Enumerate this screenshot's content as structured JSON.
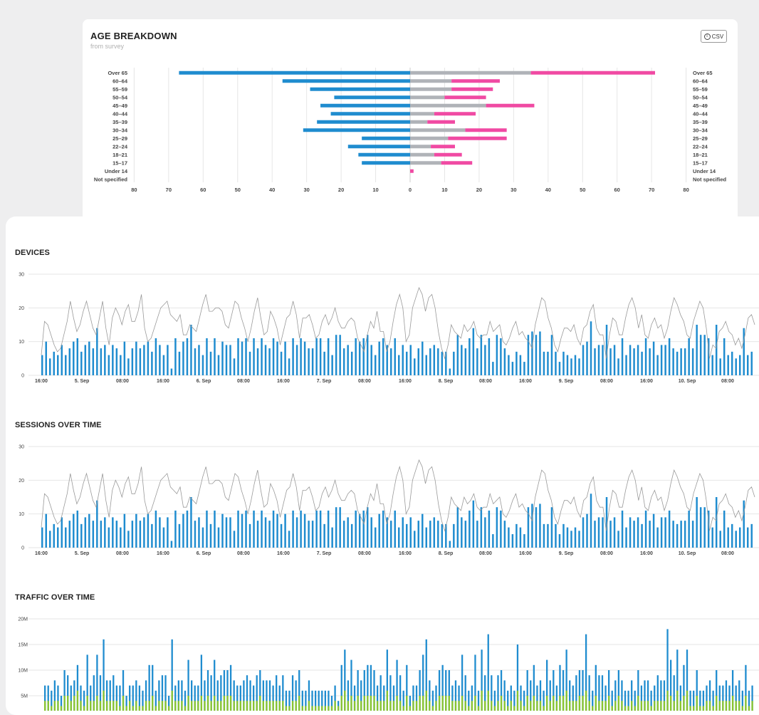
{
  "colors": {
    "blue": "#1f8ccf",
    "gray": "#b0b3b8",
    "pink": "#f04aa3",
    "green": "#8bc52e",
    "line": "#9a9a9a",
    "grid": "#e6e6e6"
  },
  "age_card": {
    "title": "AGE BREAKDOWN",
    "subtitle": "from survey",
    "csv_label": "CSV",
    "csv_icon": "download-circle-icon"
  },
  "sections": {
    "devices": "DEVICES",
    "sessions": "SESSIONS OVER TIME",
    "traffic": "TRAFFIC OVER TIME"
  },
  "chart_data": [
    {
      "id": "age",
      "type": "bar",
      "orientation": "horizontal-diverging",
      "title": "AGE BREAKDOWN",
      "subtitle": "from survey",
      "categories": [
        "Over 65",
        "60–64",
        "55–59",
        "50–54",
        "45–49",
        "40–44",
        "35–39",
        "30–34",
        "25–29",
        "22–24",
        "18–21",
        "15–17",
        "Under 14",
        "Not specified"
      ],
      "series": [
        {
          "side": "left",
          "color": "blue",
          "values": [
            67,
            37,
            29,
            22,
            26,
            23,
            27,
            31,
            14,
            18,
            15,
            14,
            0,
            0
          ]
        },
        {
          "side": "right",
          "stack": 1,
          "color": "gray",
          "values": [
            35,
            12,
            12,
            10,
            22,
            7,
            5,
            16,
            11,
            6,
            7,
            9,
            0,
            0
          ]
        },
        {
          "side": "right",
          "stack": 2,
          "color": "pink",
          "values": [
            36,
            14,
            12,
            12,
            14,
            12,
            8,
            12,
            17,
            7,
            8,
            9,
            1,
            0
          ]
        }
      ],
      "xlim": [
        -80,
        80
      ],
      "xticks": [
        "80",
        "70",
        "60",
        "50",
        "40",
        "30",
        "20",
        "10",
        "0",
        "10",
        "20",
        "30",
        "40",
        "50",
        "60",
        "70",
        "80"
      ]
    },
    {
      "id": "devices",
      "type": "bar",
      "title": "DEVICES",
      "ylim": [
        0,
        30
      ],
      "yticks": [
        "0",
        "10",
        "20",
        "30"
      ],
      "xticks": [
        "16:00",
        "5. Sep",
        "08:00",
        "16:00",
        "6. Sep",
        "08:00",
        "16:00",
        "7. Sep",
        "08:00",
        "16:00",
        "8. Sep",
        "08:00",
        "16:00",
        "9. Sep",
        "08:00",
        "16:00",
        "10. Sep",
        "08:00"
      ],
      "bars": [
        6,
        10,
        5,
        7,
        6,
        9,
        6,
        8,
        10,
        11,
        7,
        9,
        10,
        8,
        14,
        8,
        9,
        6,
        9,
        8,
        6,
        10,
        5,
        8,
        10,
        8,
        9,
        10,
        7,
        11,
        9,
        6,
        9,
        2,
        11,
        7,
        10,
        11,
        15,
        8,
        9,
        6,
        11,
        7,
        11,
        6,
        10,
        9,
        9,
        5,
        11,
        10,
        11,
        7,
        11,
        8,
        11,
        9,
        8,
        11,
        10,
        7,
        10,
        5,
        11,
        9,
        11,
        10,
        8,
        8,
        11,
        11,
        7,
        11,
        6,
        12,
        12,
        8,
        9,
        7,
        11,
        10,
        11,
        12,
        9,
        6,
        10,
        11,
        9,
        8,
        11,
        6,
        9,
        7,
        9,
        5,
        8,
        10,
        6,
        8,
        9,
        8,
        7,
        7,
        2,
        7,
        12,
        9,
        8,
        11,
        14,
        8,
        12,
        9,
        11,
        4,
        12,
        11,
        8,
        6,
        4,
        7,
        6,
        4,
        12,
        13,
        12,
        13,
        7,
        7,
        12,
        7,
        4,
        7,
        6,
        5,
        6,
        5,
        9,
        10,
        16,
        8,
        9,
        9,
        15,
        8,
        9,
        5,
        11,
        6,
        9,
        8,
        9,
        7,
        11,
        8,
        10,
        6,
        9,
        9,
        11,
        8,
        7,
        8,
        8,
        11,
        8,
        15,
        12,
        12,
        11,
        6,
        15,
        5,
        11,
        6,
        7,
        5,
        6,
        14,
        6,
        7
      ],
      "line": [
        6,
        16,
        15,
        12,
        9,
        7,
        8,
        12,
        16,
        22,
        17,
        13,
        15,
        19,
        22,
        18,
        14,
        12,
        17,
        22,
        14,
        9,
        17,
        20,
        18,
        15,
        19,
        21,
        16,
        16,
        19,
        24,
        14,
        10,
        11,
        14,
        17,
        20,
        21,
        22,
        18,
        17,
        16,
        18,
        12,
        12,
        15,
        14,
        13,
        17,
        21,
        24,
        19,
        19,
        20,
        20,
        19,
        15,
        14,
        18,
        22,
        21,
        17,
        14,
        10,
        14,
        19,
        23,
        17,
        12,
        13,
        19,
        17,
        14,
        9,
        13,
        17,
        18,
        22,
        18,
        11,
        17,
        17,
        18,
        15,
        11,
        12,
        16,
        18,
        15,
        17,
        20,
        16,
        14,
        14,
        16,
        17,
        16,
        11,
        9,
        7,
        12,
        16,
        14,
        19,
        13,
        13,
        7,
        10,
        16,
        21,
        24,
        20,
        10,
        12,
        20,
        23,
        26,
        24,
        19,
        23,
        24,
        20,
        13,
        8,
        5,
        9,
        15,
        13,
        12,
        11,
        15,
        13,
        14,
        16,
        12,
        11,
        12,
        12,
        16,
        13,
        14,
        15,
        10,
        9,
        11,
        14,
        16,
        12,
        13,
        11,
        10,
        8,
        15,
        19,
        23,
        22,
        17,
        14,
        9,
        7,
        11,
        14,
        14,
        13,
        15,
        11,
        9,
        14,
        15,
        19,
        21,
        14,
        12,
        12,
        5,
        12,
        17,
        16,
        12,
        12,
        17,
        21,
        23,
        20,
        14,
        18,
        12,
        11,
        15,
        17,
        14,
        15,
        11,
        14,
        19,
        23,
        21,
        18,
        16,
        12,
        11,
        16,
        19,
        22,
        20,
        14,
        5,
        9,
        8,
        13,
        14,
        16,
        13,
        12,
        9,
        11,
        8,
        12,
        17,
        18,
        15
      ]
    },
    {
      "id": "sessions",
      "type": "bar",
      "title": "SESSIONS OVER TIME",
      "ylim": [
        0,
        30
      ],
      "yticks": [
        "0",
        "10",
        "20",
        "30"
      ],
      "xticks": [
        "16:00",
        "5. Sep",
        "08:00",
        "16:00",
        "6. Sep",
        "08:00",
        "16:00",
        "7. Sep",
        "08:00",
        "16:00",
        "8. Sep",
        "08:00",
        "16:00",
        "9. Sep",
        "08:00",
        "16:00",
        "10. Sep",
        "08:00"
      ],
      "bars": [
        6,
        10,
        5,
        7,
        6,
        9,
        6,
        8,
        10,
        11,
        7,
        9,
        10,
        8,
        14,
        8,
        9,
        6,
        9,
        8,
        6,
        10,
        5,
        8,
        10,
        8,
        9,
        10,
        7,
        11,
        9,
        6,
        9,
        2,
        11,
        7,
        10,
        11,
        15,
        8,
        9,
        6,
        11,
        7,
        11,
        6,
        10,
        9,
        9,
        5,
        11,
        10,
        11,
        7,
        11,
        8,
        11,
        9,
        8,
        11,
        10,
        7,
        10,
        5,
        11,
        9,
        11,
        10,
        8,
        8,
        11,
        11,
        7,
        11,
        6,
        12,
        12,
        8,
        9,
        7,
        11,
        10,
        11,
        12,
        9,
        6,
        10,
        11,
        9,
        8,
        11,
        6,
        9,
        7,
        9,
        5,
        8,
        10,
        6,
        8,
        9,
        8,
        7,
        7,
        2,
        7,
        12,
        9,
        8,
        11,
        14,
        8,
        12,
        9,
        11,
        4,
        12,
        11,
        8,
        6,
        4,
        7,
        6,
        4,
        12,
        13,
        12,
        13,
        7,
        7,
        12,
        7,
        4,
        7,
        6,
        5,
        6,
        5,
        9,
        10,
        16,
        8,
        9,
        9,
        15,
        8,
        9,
        5,
        11,
        6,
        9,
        8,
        9,
        7,
        11,
        8,
        10,
        6,
        9,
        9,
        11,
        8,
        7,
        8,
        8,
        11,
        8,
        15,
        12,
        12,
        11,
        6,
        15,
        5,
        11,
        6,
        7,
        5,
        6,
        14,
        6,
        7
      ],
      "line": [
        6,
        16,
        15,
        12,
        9,
        7,
        8,
        12,
        16,
        22,
        17,
        13,
        15,
        19,
        22,
        18,
        14,
        12,
        17,
        22,
        14,
        9,
        17,
        20,
        18,
        15,
        19,
        21,
        16,
        16,
        19,
        24,
        14,
        10,
        11,
        14,
        17,
        20,
        21,
        22,
        18,
        17,
        16,
        18,
        12,
        12,
        15,
        14,
        13,
        17,
        21,
        24,
        19,
        19,
        20,
        20,
        19,
        15,
        14,
        18,
        22,
        21,
        17,
        14,
        10,
        14,
        19,
        23,
        17,
        12,
        13,
        19,
        17,
        14,
        9,
        13,
        17,
        18,
        22,
        18,
        11,
        17,
        17,
        18,
        15,
        11,
        12,
        16,
        18,
        15,
        17,
        20,
        16,
        14,
        14,
        16,
        17,
        16,
        11,
        9,
        7,
        12,
        16,
        14,
        19,
        13,
        13,
        7,
        10,
        16,
        21,
        24,
        20,
        10,
        12,
        20,
        23,
        26,
        24,
        19,
        23,
        24,
        20,
        13,
        8,
        5,
        9,
        15,
        13,
        12,
        11,
        15,
        13,
        14,
        16,
        12,
        11,
        12,
        12,
        16,
        13,
        14,
        15,
        10,
        9,
        11,
        14,
        16,
        12,
        13,
        11,
        10,
        8,
        15,
        19,
        23,
        22,
        17,
        14,
        9,
        7,
        11,
        14,
        14,
        13,
        15,
        11,
        9,
        14,
        15,
        19,
        21,
        14,
        12,
        12,
        5,
        12,
        17,
        16,
        12,
        12,
        17,
        21,
        23,
        20,
        14,
        18,
        12,
        11,
        15,
        17,
        14,
        15,
        11,
        14,
        19,
        23,
        21,
        18,
        16,
        12,
        11,
        16,
        19,
        22,
        20,
        14,
        5,
        9,
        8,
        13,
        14,
        16,
        13,
        12,
        9,
        11,
        8,
        12,
        17,
        18,
        15
      ]
    },
    {
      "id": "traffic",
      "type": "bar",
      "title": "TRAFFIC OVER TIME",
      "ylim_visible": [
        3,
        20
      ],
      "yticks": [
        "5M",
        "10M",
        "15M",
        "20M"
      ],
      "unit": "M",
      "series": [
        {
          "name": "total",
          "color": "blue",
          "values": [
            7,
            7,
            6,
            8,
            7,
            5,
            10,
            9,
            7,
            8,
            11,
            7,
            6,
            13,
            7,
            9,
            13,
            9,
            16,
            8,
            8,
            9,
            7,
            7,
            10,
            5,
            7,
            7,
            8,
            7,
            6,
            8,
            11,
            11,
            6,
            8,
            9,
            9,
            5,
            16,
            7,
            8,
            8,
            6,
            12,
            8,
            7,
            7,
            13,
            8,
            10,
            9,
            12,
            8,
            9,
            10,
            10,
            11,
            8,
            7,
            7,
            8,
            9,
            8,
            7,
            9,
            10,
            8,
            8,
            8,
            7,
            9,
            7,
            9,
            6,
            6,
            9,
            8,
            10,
            6,
            6,
            8,
            6,
            6,
            6,
            6,
            6,
            6,
            5,
            7,
            4,
            11,
            14,
            8,
            12,
            7,
            10,
            8,
            10,
            11,
            11,
            10,
            7,
            9,
            7,
            14,
            9,
            7,
            12,
            9,
            6,
            11,
            5,
            7,
            7,
            10,
            13,
            16,
            8,
            6,
            7,
            10,
            11,
            10,
            10,
            7,
            8,
            7,
            13,
            9,
            6,
            7,
            13,
            6,
            14,
            9,
            17,
            9,
            6,
            9,
            10,
            8,
            6,
            7,
            6,
            15,
            7,
            6,
            10,
            8,
            11,
            7,
            8,
            6,
            12,
            8,
            10,
            7,
            11,
            10,
            14,
            8,
            7,
            9,
            10,
            10,
            17,
            9,
            6,
            11,
            9,
            9,
            7,
            10,
            6,
            8,
            10,
            8,
            6,
            6,
            8,
            6,
            10,
            7,
            8,
            8,
            6,
            7,
            9,
            8,
            8,
            18,
            12,
            9,
            14,
            7,
            11,
            14,
            6,
            6,
            10,
            6,
            6,
            7,
            8,
            6,
            10,
            7,
            7,
            8,
            7,
            10,
            7,
            8,
            6,
            11,
            6,
            7
          ]
        },
        {
          "name": "secondary",
          "color": "green",
          "values": [
            4,
            4,
            3,
            4,
            4,
            3,
            5,
            5,
            4,
            5,
            6,
            4,
            3,
            5,
            4,
            4,
            5,
            4,
            6,
            4,
            4,
            4,
            4,
            3,
            5,
            3,
            4,
            3,
            4,
            3,
            3,
            4,
            4,
            5,
            3,
            4,
            4,
            4,
            3,
            6,
            4,
            4,
            4,
            3,
            5,
            4,
            4,
            4,
            5,
            4,
            5,
            4,
            5,
            4,
            4,
            5,
            5,
            5,
            4,
            4,
            4,
            4,
            4,
            4,
            4,
            4,
            5,
            4,
            4,
            4,
            4,
            4,
            4,
            4,
            3,
            3,
            4,
            4,
            5,
            3,
            3,
            4,
            3,
            3,
            3,
            3,
            3,
            3,
            3,
            4,
            3,
            5,
            6,
            4,
            5,
            4,
            5,
            4,
            5,
            5,
            5,
            5,
            4,
            4,
            4,
            6,
            4,
            4,
            5,
            4,
            3,
            5,
            3,
            4,
            4,
            5,
            5,
            6,
            4,
            3,
            4,
            5,
            5,
            5,
            5,
            4,
            4,
            4,
            5,
            4,
            3,
            4,
            5,
            3,
            6,
            4,
            6,
            4,
            3,
            4,
            5,
            4,
            3,
            4,
            3,
            6,
            4,
            3,
            5,
            4,
            5,
            4,
            4,
            3,
            5,
            4,
            5,
            4,
            5,
            5,
            6,
            4,
            4,
            4,
            5,
            5,
            6,
            4,
            3,
            5,
            4,
            4,
            4,
            5,
            3,
            4,
            5,
            4,
            3,
            3,
            4,
            3,
            5,
            4,
            4,
            4,
            3,
            4,
            4,
            4,
            4,
            6,
            5,
            4,
            6,
            4,
            5,
            6,
            3,
            3,
            5,
            3,
            3,
            4,
            4,
            3,
            5,
            4,
            4,
            4,
            4,
            5,
            4,
            4,
            3,
            5,
            3,
            4
          ]
        }
      ]
    }
  ]
}
